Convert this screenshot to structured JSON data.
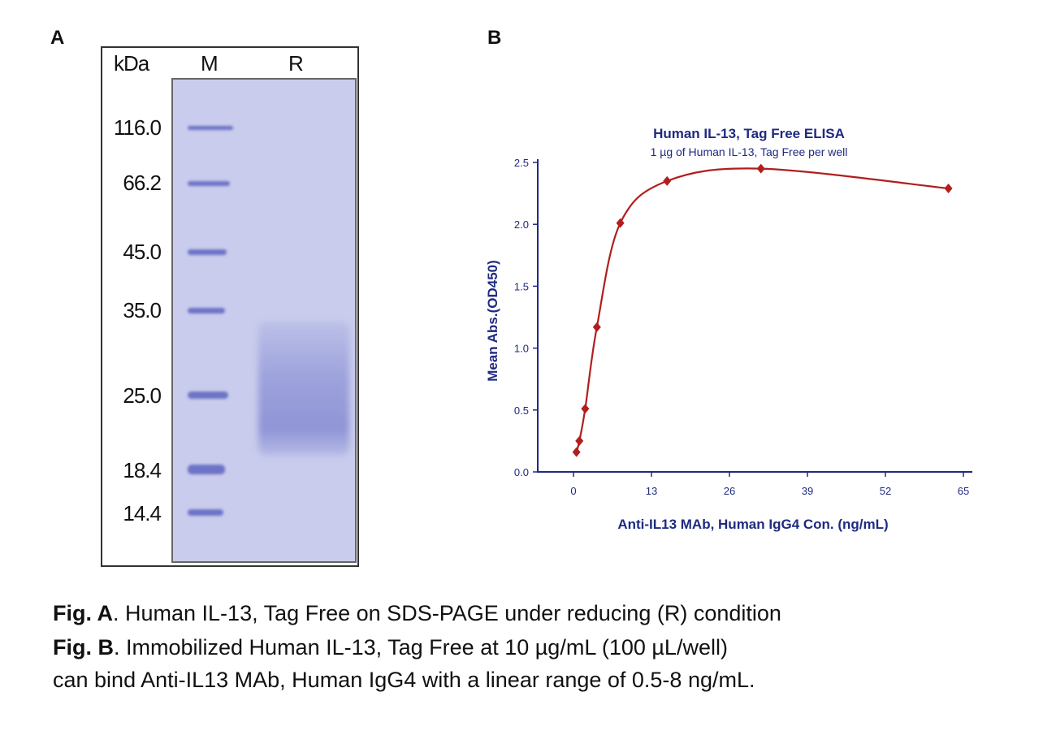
{
  "panel_a": {
    "label": "A",
    "kda": "kDa",
    "lanes": [
      "M",
      "R"
    ],
    "markers": [
      "116.0",
      "66.2",
      "45.0",
      "35.0",
      "25.0",
      "18.4",
      "14.4"
    ]
  },
  "panel_b": {
    "label": "B"
  },
  "chart_data": {
    "type": "scatter",
    "title": "Human IL-13, Tag Free ELISA",
    "subtitle": "1 µg of Human IL-13, Tag Free per well",
    "xlabel": "Anti-IL13 MAb, Human IgG4 Con. (ng/mL)",
    "ylabel": "Mean Abs.(OD450)",
    "xlim": [
      -4,
      68
    ],
    "ylim": [
      0,
      2.5
    ],
    "xticks": [
      "0",
      "13",
      "26",
      "39",
      "52",
      "65"
    ],
    "yticks": [
      "0.0",
      "0.5",
      "1.0",
      "1.5",
      "2.0",
      "2.5"
    ],
    "series": [
      {
        "name": "Anti-IL13 MAb",
        "color": "#b01e1e",
        "fit": "smooth curve",
        "x": [
          0.49,
          0.98,
          1.95,
          3.9,
          7.8,
          15.6,
          31.25,
          62.5
        ],
        "y": [
          0.16,
          0.25,
          0.51,
          1.17,
          2.01,
          2.35,
          2.45,
          2.29
        ]
      }
    ],
    "grid": false
  },
  "caption": {
    "a_bold": "Fig. A",
    "a_text": ". Human IL-13, Tag Free on SDS-PAGE under reducing (R) condition",
    "b_bold": "Fig. B",
    "b_text": ". Immobilized Human IL-13, Tag Free at 10 µg/mL (100 µL/well)",
    "b_text2": "can bind Anti-IL13 MAb, Human IgG4 with a linear range of 0.5-8 ng/mL."
  }
}
